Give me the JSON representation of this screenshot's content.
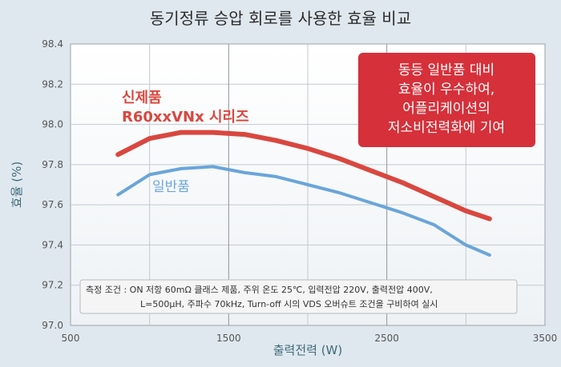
{
  "chart_data": {
    "type": "line",
    "title": "동기정류 승압 회로를 사용한 효율 비교",
    "xlabel": "출력전력 (W)",
    "ylabel": "효율 (%)",
    "xlim": [
      500,
      3500
    ],
    "ylim": [
      97.0,
      98.4
    ],
    "x_ticks": [
      "500",
      "1500",
      "2500",
      "3500"
    ],
    "y_ticks": [
      "97.0",
      "97.2",
      "97.4",
      "97.6",
      "97.8",
      "98.0",
      "98.2",
      "98.4"
    ],
    "grid": true,
    "series": [
      {
        "name_lines": [
          "신제품",
          "R60xxVNx 시리즈"
        ],
        "color": "#d9473f",
        "x": [
          800,
          1000,
          1200,
          1400,
          1600,
          1800,
          2000,
          2200,
          2400,
          2600,
          2800,
          3000,
          3150
        ],
        "y": [
          97.85,
          97.93,
          97.96,
          97.96,
          97.95,
          97.92,
          97.88,
          97.83,
          97.77,
          97.71,
          97.64,
          97.57,
          97.53
        ]
      },
      {
        "name": "일반품",
        "color": "#6aa5d9",
        "x": [
          800,
          1000,
          1200,
          1400,
          1600,
          1800,
          2000,
          2200,
          2400,
          2600,
          2800,
          3000,
          3150
        ],
        "y": [
          97.65,
          97.75,
          97.78,
          97.79,
          97.76,
          97.74,
          97.7,
          97.66,
          97.61,
          97.56,
          97.5,
          97.4,
          97.35
        ]
      }
    ],
    "callout_lines": [
      "동등 일반품 대비",
      "효율이 우수하여,",
      "어플리케이션의",
      "저소비전력화에 기여"
    ],
    "callout_color": "#d6303a",
    "note_lines": [
      "측정 조건 : ON 저항 60mΩ 클래스 제품, 주위 온도 25℃, 입력전압 220V, 출력전압 400V,",
      "L=500μH, 주파수 70kHz, Turn-off 시의 VDS 오버슈트 조건을 구비하여 실시"
    ]
  }
}
